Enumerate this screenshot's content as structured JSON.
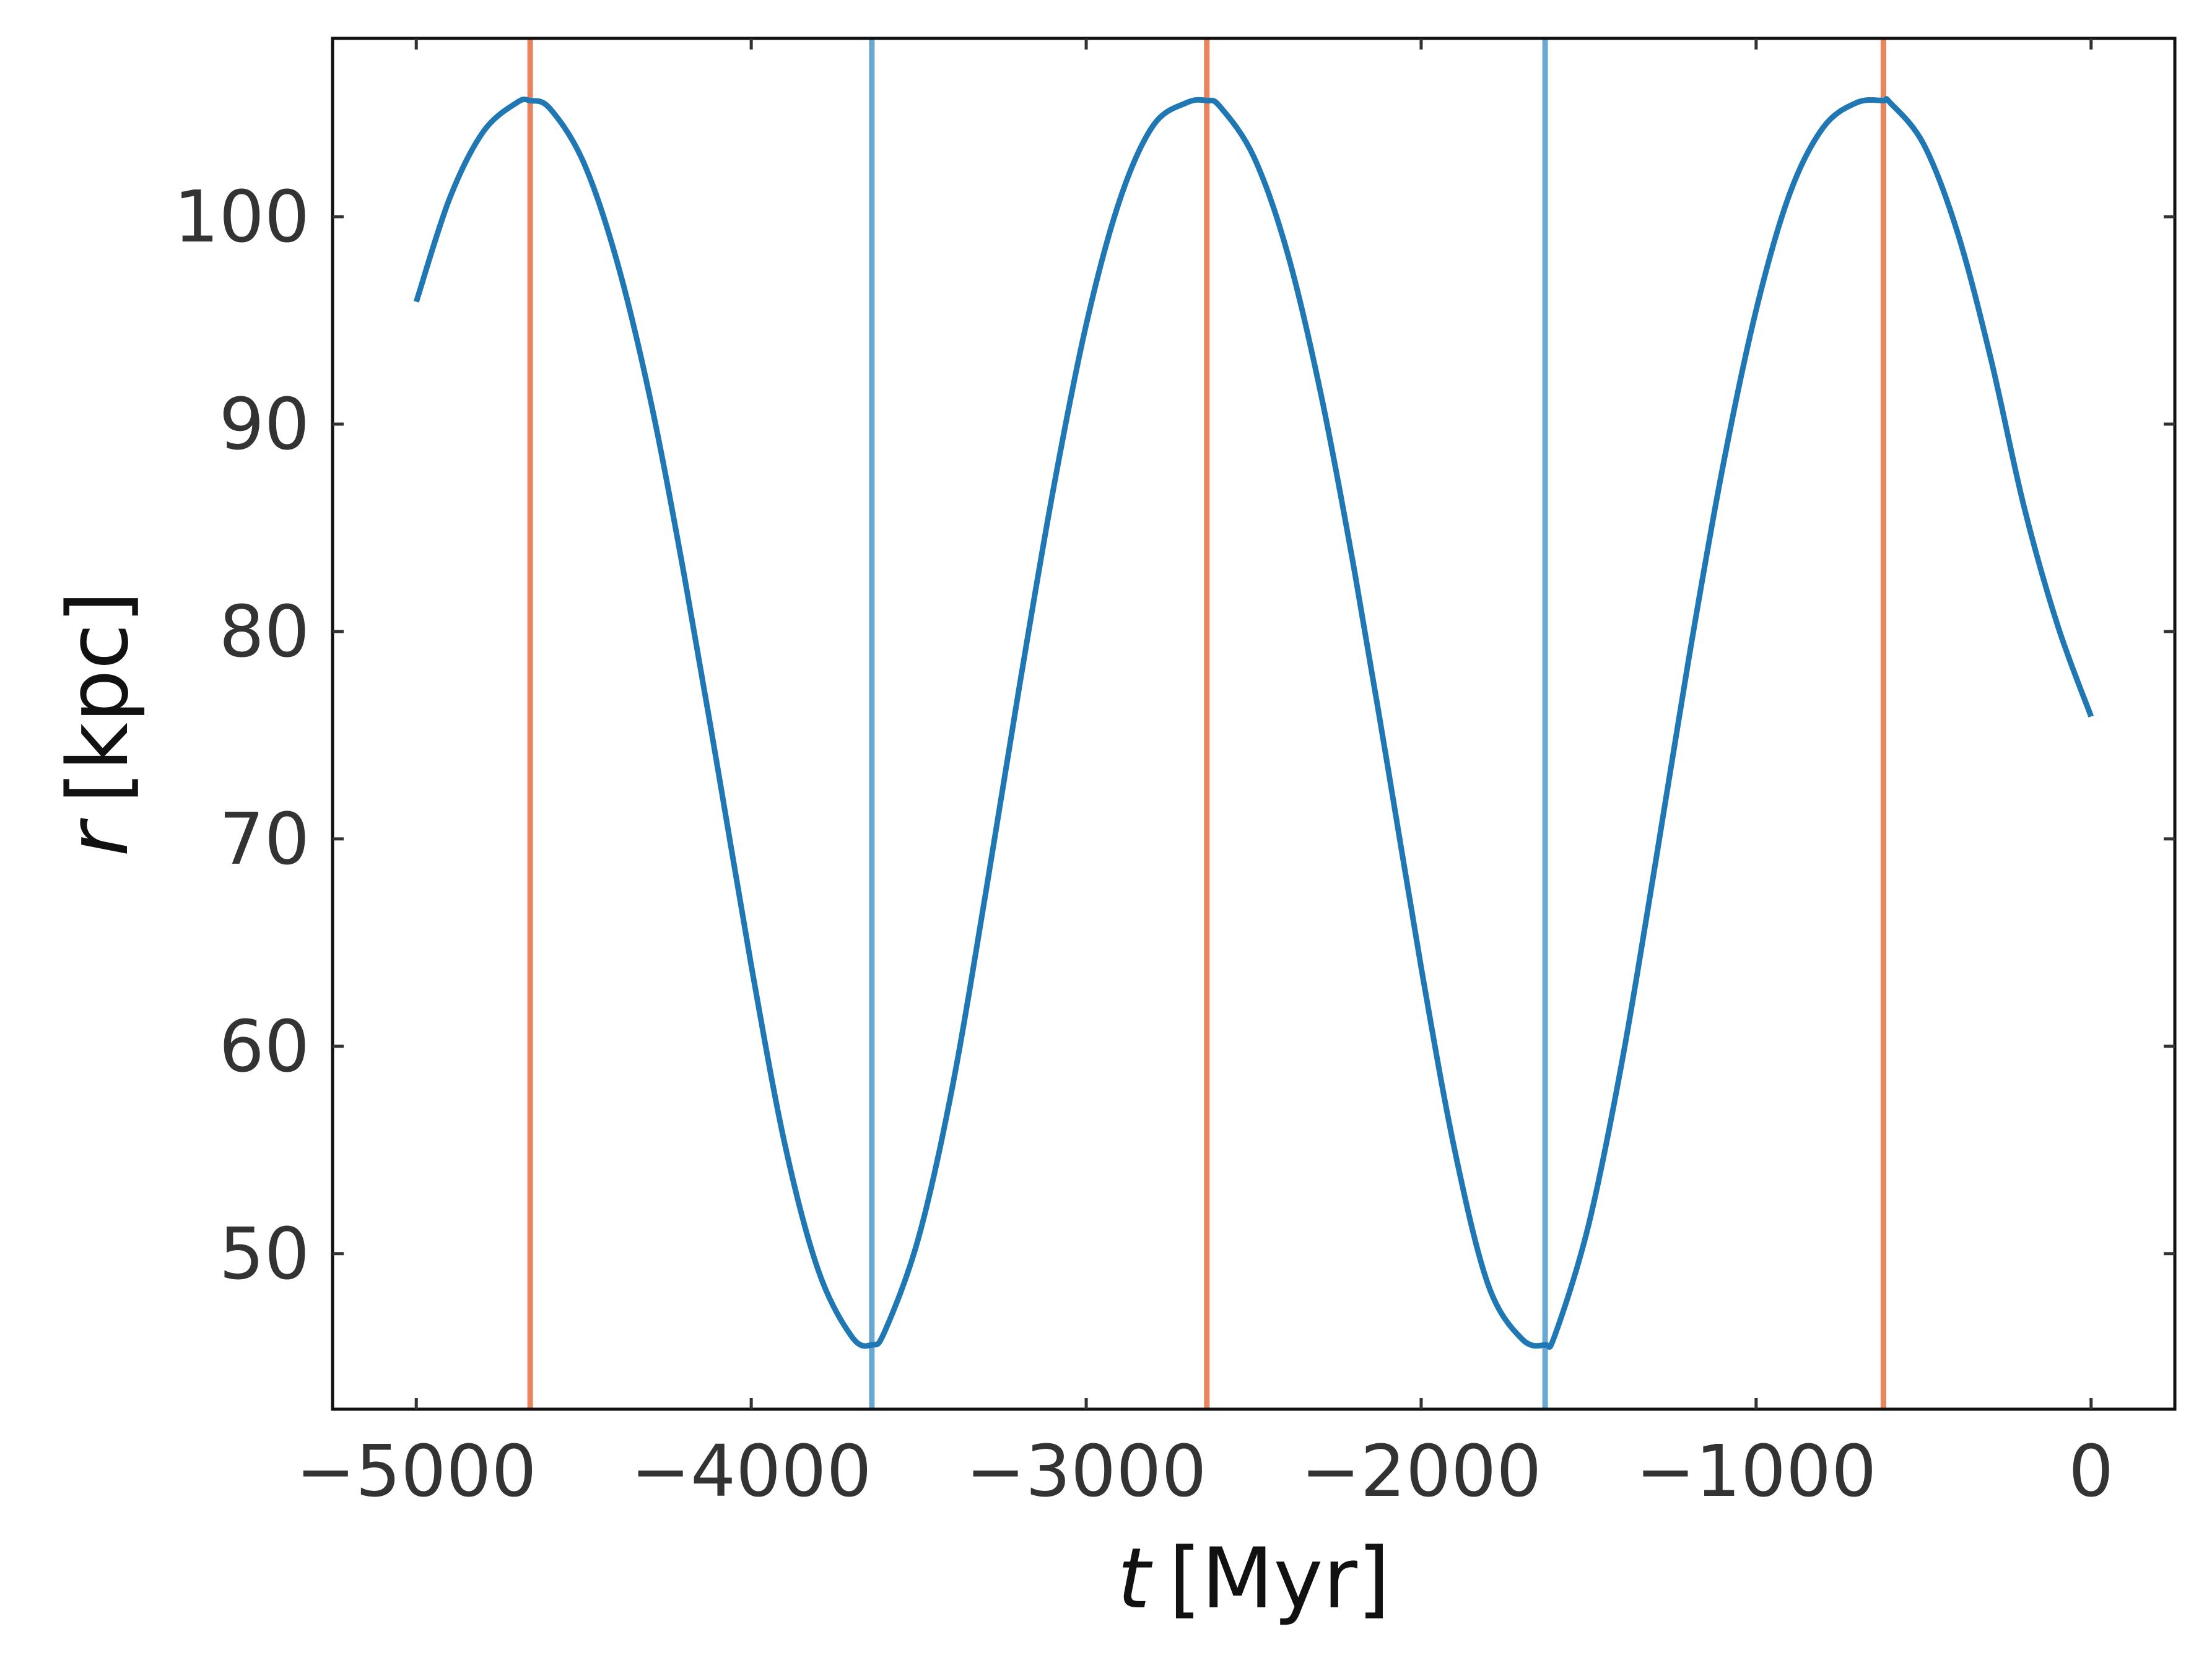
{
  "chart_data": {
    "type": "line",
    "title": "",
    "xlabel_var": "t",
    "xlabel_unit": "[Myr]",
    "ylabel_var": "r",
    "ylabel_unit": "[kpc]",
    "xlim": [
      -5250,
      250
    ],
    "ylim": [
      42.5,
      108.6
    ],
    "x_ticks": [
      -5000,
      -4000,
      -3000,
      -2000,
      -1000,
      0
    ],
    "x_tick_labels": [
      "−5000",
      "−4000",
      "−3000",
      "−2000",
      "−1000",
      "0"
    ],
    "y_ticks": [
      50,
      60,
      70,
      80,
      90,
      100
    ],
    "y_tick_labels": [
      "50",
      "60",
      "70",
      "80",
      "90",
      "100"
    ],
    "grid": false,
    "series": [
      {
        "color": "#1f77b4",
        "x": [
          -5000,
          -4900,
          -4800,
          -4700,
          -4660,
          -4600,
          -4500,
          -4400,
          -4300,
          -4200,
          -4100,
          -4000,
          -3900,
          -3800,
          -3700,
          -3640,
          -3600,
          -3500,
          -3400,
          -3300,
          -3200,
          -3100,
          -3000,
          -2900,
          -2800,
          -2700,
          -2640,
          -2600,
          -2500,
          -2400,
          -2300,
          -2200,
          -2100,
          -2000,
          -1900,
          -1800,
          -1700,
          -1630,
          -1600,
          -1500,
          -1400,
          -1300,
          -1200,
          -1100,
          -1000,
          -900,
          -800,
          -700,
          -620,
          -600,
          -500,
          -400,
          -300,
          -200,
          -100,
          0
        ],
        "y": [
          95.9,
          100.9,
          104.1,
          105.5,
          105.6,
          105.2,
          102.6,
          97.8,
          91.1,
          82.7,
          73.4,
          63.9,
          55.3,
          49.2,
          46.0,
          45.6,
          46.3,
          50.8,
          58.0,
          67.4,
          77.3,
          86.7,
          94.8,
          100.8,
          104.4,
          105.5,
          105.6,
          105.3,
          102.9,
          98.3,
          91.5,
          83.0,
          73.5,
          63.8,
          55.0,
          48.5,
          45.9,
          45.6,
          46.1,
          51.4,
          59.3,
          68.9,
          78.8,
          87.9,
          95.5,
          101.1,
          104.3,
          105.5,
          105.6,
          105.5,
          103.5,
          99.3,
          93.2,
          86.0,
          80.3,
          75.9
        ]
      }
    ],
    "vlines": [
      {
        "x": -4660,
        "color": "#e8845e"
      },
      {
        "x": -3640,
        "color": "#6aa8d2"
      },
      {
        "x": -2640,
        "color": "#e8845e"
      },
      {
        "x": -1630,
        "color": "#6aa8d2"
      },
      {
        "x": -620,
        "color": "#e8845e"
      }
    ]
  }
}
